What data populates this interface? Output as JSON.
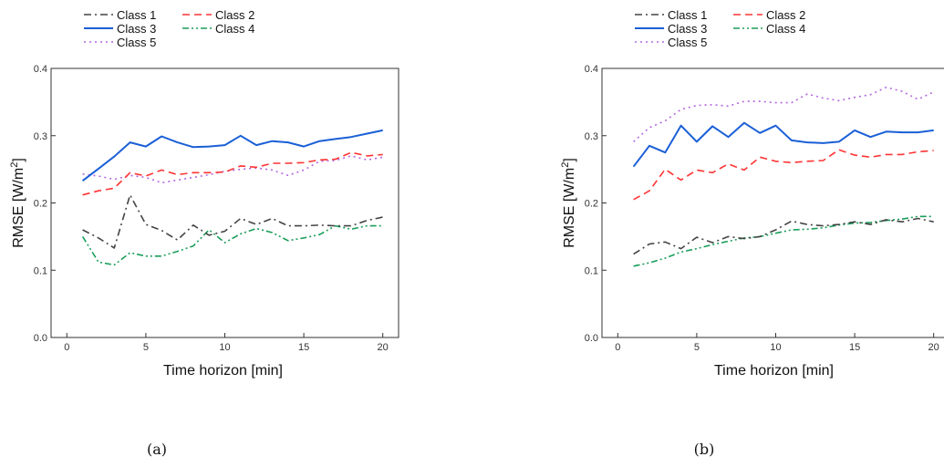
{
  "chart_data": [
    {
      "type": "line",
      "caption": "(a)",
      "xlabel": "Time horizon [min]",
      "ylabel_main": "RMSE [W/m",
      "ylabel_sup": "2",
      "ylabel_end": "]",
      "xlim": [
        -1,
        21
      ],
      "ylim": [
        0,
        0.4
      ],
      "xticks": [
        0,
        5,
        10,
        15,
        20
      ],
      "yticks": [
        0.0,
        0.1,
        0.2,
        0.3,
        0.4
      ],
      "ytick_labels": [
        "0.0",
        "0.1",
        "0.2",
        "0.3",
        "0.4"
      ],
      "grid": false,
      "legend": "top",
      "x": [
        1,
        2,
        3,
        4,
        5,
        6,
        7,
        8,
        9,
        10,
        11,
        12,
        13,
        14,
        15,
        16,
        17,
        18,
        19,
        20
      ],
      "series": [
        {
          "name": "Class 1",
          "color": "#444444",
          "dash": "dashdot",
          "values": [
            0.16,
            0.148,
            0.133,
            0.212,
            0.168,
            0.159,
            0.145,
            0.167,
            0.152,
            0.158,
            0.177,
            0.168,
            0.177,
            0.166,
            0.166,
            0.167,
            0.166,
            0.166,
            0.174,
            0.179
          ]
        },
        {
          "name": "Class 2",
          "color": "#ff3333",
          "dash": "dash",
          "values": [
            0.212,
            0.218,
            0.222,
            0.245,
            0.24,
            0.249,
            0.242,
            0.245,
            0.245,
            0.246,
            0.255,
            0.253,
            0.259,
            0.259,
            0.26,
            0.264,
            0.265,
            0.275,
            0.27,
            0.272
          ]
        },
        {
          "name": "Class 3",
          "color": "#1a5fd6",
          "dash": "solid",
          "values": [
            0.233,
            0.251,
            0.269,
            0.29,
            0.284,
            0.299,
            0.29,
            0.283,
            0.284,
            0.286,
            0.3,
            0.286,
            0.292,
            0.29,
            0.284,
            0.292,
            0.295,
            0.298,
            0.303,
            0.308
          ]
        },
        {
          "name": "Class 4",
          "color": "#1a9e5a",
          "dash": "dashdotdot",
          "values": [
            0.15,
            0.112,
            0.108,
            0.126,
            0.121,
            0.121,
            0.128,
            0.136,
            0.16,
            0.141,
            0.154,
            0.162,
            0.156,
            0.144,
            0.148,
            0.153,
            0.166,
            0.161,
            0.166,
            0.166
          ]
        },
        {
          "name": "Class 5",
          "color": "#b266e0",
          "dash": "dot",
          "values": [
            0.243,
            0.24,
            0.235,
            0.241,
            0.238,
            0.23,
            0.234,
            0.238,
            0.242,
            0.247,
            0.25,
            0.252,
            0.249,
            0.241,
            0.249,
            0.262,
            0.263,
            0.27,
            0.264,
            0.268
          ]
        }
      ]
    },
    {
      "type": "line",
      "caption": "(b)",
      "xlabel": "Time horizon [min]",
      "ylabel_main": "RMSE [W/m",
      "ylabel_sup": "2",
      "ylabel_end": "]",
      "xlim": [
        -1,
        21
      ],
      "ylim": [
        0,
        0.4
      ],
      "xticks": [
        0,
        5,
        10,
        15,
        20
      ],
      "yticks": [
        0.0,
        0.1,
        0.2,
        0.3,
        0.4
      ],
      "ytick_labels": [
        "0.0",
        "0.1",
        "0.2",
        "0.3",
        "0.4"
      ],
      "grid": false,
      "legend": "top",
      "x": [
        1,
        2,
        3,
        4,
        5,
        6,
        7,
        8,
        9,
        10,
        11,
        12,
        13,
        14,
        15,
        16,
        17,
        18,
        19,
        20
      ],
      "series": [
        {
          "name": "Class 1",
          "color": "#444444",
          "dash": "dashdot",
          "values": [
            0.124,
            0.139,
            0.142,
            0.132,
            0.149,
            0.141,
            0.15,
            0.147,
            0.15,
            0.16,
            0.173,
            0.168,
            0.166,
            0.168,
            0.172,
            0.168,
            0.175,
            0.172,
            0.177,
            0.172
          ]
        },
        {
          "name": "Class 2",
          "color": "#ff3333",
          "dash": "dash",
          "values": [
            0.205,
            0.218,
            0.25,
            0.234,
            0.249,
            0.245,
            0.258,
            0.249,
            0.268,
            0.262,
            0.26,
            0.262,
            0.263,
            0.279,
            0.271,
            0.268,
            0.272,
            0.272,
            0.276,
            0.278
          ]
        },
        {
          "name": "Class 3",
          "color": "#1a5fd6",
          "dash": "solid",
          "values": [
            0.254,
            0.285,
            0.275,
            0.315,
            0.291,
            0.314,
            0.298,
            0.319,
            0.304,
            0.315,
            0.293,
            0.29,
            0.289,
            0.291,
            0.308,
            0.298,
            0.306,
            0.305,
            0.305,
            0.308
          ]
        },
        {
          "name": "Class 4",
          "color": "#1a9e5a",
          "dash": "dashdotdot",
          "values": [
            0.106,
            0.111,
            0.118,
            0.127,
            0.132,
            0.138,
            0.143,
            0.148,
            0.15,
            0.155,
            0.16,
            0.161,
            0.163,
            0.167,
            0.17,
            0.171,
            0.174,
            0.176,
            0.18,
            0.18
          ]
        },
        {
          "name": "Class 5",
          "color": "#b266e0",
          "dash": "dot",
          "values": [
            0.291,
            0.312,
            0.322,
            0.339,
            0.345,
            0.346,
            0.344,
            0.351,
            0.351,
            0.349,
            0.349,
            0.362,
            0.356,
            0.352,
            0.357,
            0.361,
            0.372,
            0.366,
            0.354,
            0.365
          ]
        }
      ]
    }
  ]
}
